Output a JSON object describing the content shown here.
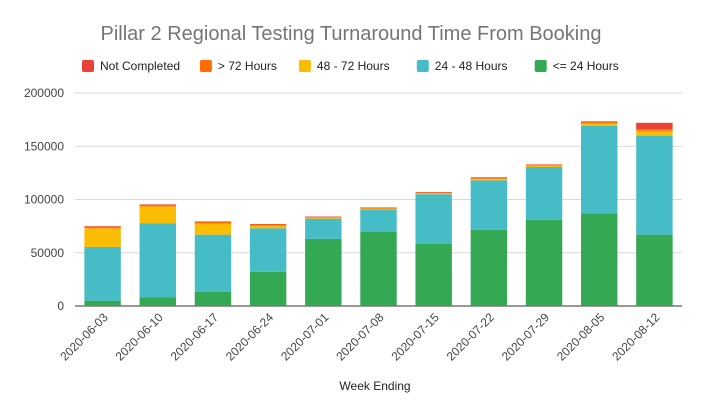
{
  "chart_data": {
    "type": "bar",
    "stacked": true,
    "title": "Pillar 2 Regional Testing Turnaround Time From Booking",
    "xlabel": "Week Ending",
    "ylabel": "",
    "ylim": [
      0,
      200000
    ],
    "yticks": [
      "0",
      "50000",
      "100000",
      "150000",
      "200000"
    ],
    "grid": true,
    "legend_position": "top",
    "categories": [
      "2020-06-03",
      "2020-06-10",
      "2020-06-17",
      "2020-06-24",
      "2020-07-01",
      "2020-07-08",
      "2020-07-15",
      "2020-07-22",
      "2020-07-29",
      "2020-08-05",
      "2020-08-12"
    ],
    "series": [
      {
        "name": "<= 24 Hours",
        "color": "#34a853",
        "values": [
          5000,
          8000,
          13500,
          32000,
          63000,
          69500,
          58500,
          71500,
          81000,
          87000,
          67000
        ]
      },
      {
        "name": "24 - 48 Hours",
        "color": "#46bdc6",
        "values": [
          50500,
          69500,
          53500,
          41000,
          19000,
          21000,
          46500,
          46500,
          49500,
          82000,
          93000
        ]
      },
      {
        "name": "48 - 72 Hours",
        "color": "#fbbc04",
        "values": [
          17500,
          16000,
          10500,
          2500,
          1000,
          1000,
          1000,
          1500,
          1500,
          2500,
          4500
        ]
      },
      {
        "name": "> 72 Hours",
        "color": "#ff6d01",
        "values": [
          1500,
          1500,
          1500,
          1000,
          500,
          500,
          500,
          1000,
          500,
          1500,
          1500
        ]
      },
      {
        "name": "Not Completed",
        "color": "#ea4335",
        "values": [
          500,
          500,
          500,
          500,
          500,
          500,
          500,
          500,
          500,
          500,
          6000
        ]
      }
    ]
  }
}
